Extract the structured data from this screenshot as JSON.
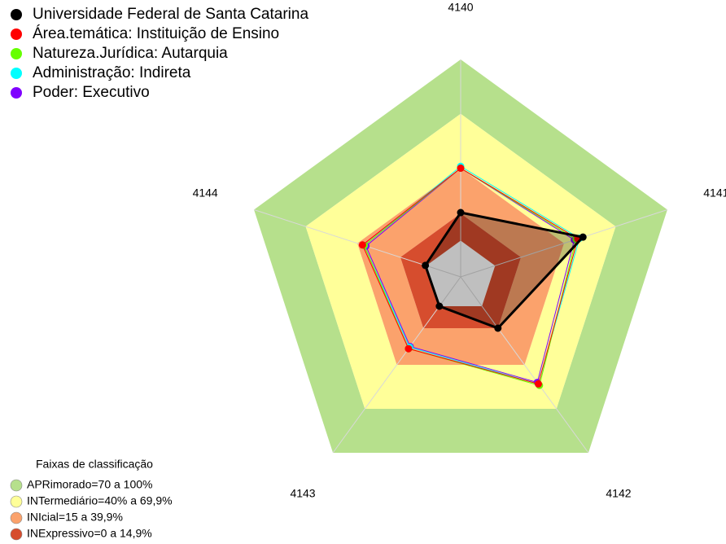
{
  "chart_data": {
    "type": "radar",
    "axes": [
      "4140",
      "4141",
      "4142",
      "4143",
      "4144"
    ],
    "rlim": [
      -20,
      100
    ],
    "series": [
      {
        "name": "Universidade Federal de Santa Catarina",
        "color": "#000000",
        "values": [
          15.5,
          51,
          15,
          0,
          0.5
        ]
      },
      {
        "name": "Área.temática: Instituição de Ensino",
        "color": "#ff0000",
        "values": [
          40,
          48,
          53,
          29,
          37
        ]
      },
      {
        "name": "Natureza.Jurídica: Autarquia",
        "color": "#66ff00",
        "values": [
          40,
          47,
          54,
          29,
          36
        ]
      },
      {
        "name": "Administração: Indireta",
        "color": "#00ffff",
        "values": [
          41,
          49,
          53,
          28,
          36
        ]
      },
      {
        "name": "Poder: Executivo",
        "color": "#8000ff",
        "values": [
          40,
          46,
          52,
          27.5,
          35
        ]
      }
    ],
    "bands_title": "Faixas de classificação",
    "bands": [
      {
        "label": "APRimorado=70 a 100%",
        "color": "#b6e08c",
        "min": 70,
        "max": 100
      },
      {
        "label": "INTermediário=40% a 69,9%",
        "color": "#ffff99",
        "min": 40,
        "max": 70
      },
      {
        "label": "INIcial=15 a 39,9%",
        "color": "#fba26c",
        "min": 15,
        "max": 40
      },
      {
        "label": "INExpressivo=0 a 14,9%",
        "color": "#d64d2e",
        "min": 0,
        "max": 15
      }
    ]
  }
}
